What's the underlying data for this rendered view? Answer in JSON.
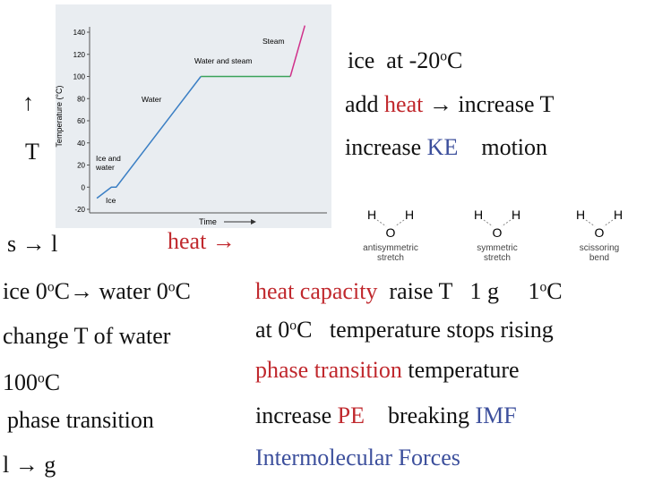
{
  "left": {
    "up_arrow": "↑",
    "t_label": "T",
    "s_to_l": "s → l",
    "heat_arrow": "heat →",
    "ice_water": [
      "ice 0",
      "o",
      "C→ water 0",
      "o",
      "C"
    ],
    "change_t": "change T of water",
    "boil": [
      "100",
      "o",
      "C"
    ],
    "phase_transition": "phase transition",
    "l_to_g": "l → g"
  },
  "right": {
    "ice": [
      "ice  at -20",
      "o",
      "C"
    ],
    "add_heat": [
      "add ",
      "heat",
      " → increase T"
    ],
    "increase_ke": [
      "increase ",
      "KE",
      "    motion"
    ],
    "heat_capacity": [
      "heat capacity",
      "raise T   1 g     1",
      "o",
      "C"
    ],
    "at_zero": [
      "at 0",
      "o",
      "C   temperature stops rising"
    ],
    "phase_temp": [
      "phase transition",
      " temperature"
    ],
    "increase_pe": [
      "increase ",
      "PE",
      "    breaking ",
      "IMF"
    ],
    "imf": "Intermolecular Forces"
  },
  "molecules": [
    {
      "h1": "H",
      "o": "O",
      "h2": "H",
      "label": [
        "antisymmetric",
        "stretch"
      ]
    },
    {
      "h1": "H",
      "o": "O",
      "h2": "H",
      "label": [
        "symmetric",
        "stretch"
      ]
    },
    {
      "h1": "H",
      "o": "O",
      "h2": "H",
      "label": [
        "scissoring",
        "bend"
      ]
    }
  ],
  "chart_data": {
    "type": "line",
    "y_label": "Temperature (°C)",
    "x_label": "Time",
    "annotations": [
      "Steam",
      "Water and steam",
      "Water",
      "Ice and",
      "water",
      "Ice"
    ],
    "xlim": [
      0,
      10
    ],
    "ylim": [
      -20,
      140
    ],
    "yticks": [
      -20,
      0,
      20,
      40,
      60,
      80,
      100,
      120,
      140
    ],
    "series": [
      {
        "color": "#3b7fc4",
        "x": [
          0.3,
          0.9,
          1.1,
          4.6
        ],
        "values": [
          -10,
          0,
          0,
          100
        ]
      },
      {
        "color": "#3aa35a",
        "x": [
          4.6,
          8.3
        ],
        "values": [
          100,
          100
        ]
      },
      {
        "color": "#d0308a",
        "x": [
          8.3,
          8.9
        ],
        "values": [
          100,
          146
        ]
      }
    ]
  }
}
